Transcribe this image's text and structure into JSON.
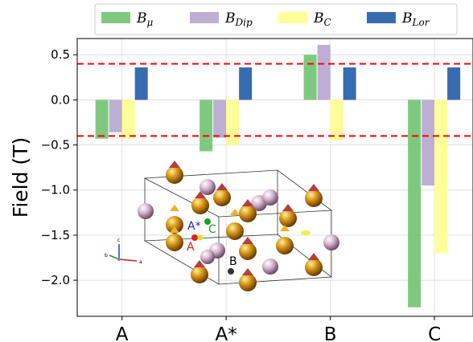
{
  "chart_data": {
    "type": "bar",
    "categories": [
      "A",
      "A*",
      "B",
      "C"
    ],
    "series": [
      {
        "name": "B",
        "sub": "μ",
        "color": "#7fc97f",
        "values": [
          -0.43,
          -0.57,
          0.5,
          -2.3
        ]
      },
      {
        "name": "B",
        "sub": "Dip",
        "color": "#beaed4",
        "values": [
          -0.36,
          -0.42,
          0.61,
          -0.95
        ]
      },
      {
        "name": "B",
        "sub": "C",
        "color": "#ffff99",
        "values": [
          -0.43,
          -0.5,
          -0.45,
          -1.7
        ]
      },
      {
        "name": "B",
        "sub": "Lor",
        "color": "#386cb0",
        "values": [
          0.36,
          0.36,
          0.36,
          0.36
        ]
      }
    ],
    "ylabel": "Field (T)",
    "ylim": [
      -2.4,
      0.68
    ],
    "yticks": [
      0.5,
      0.0,
      -0.5,
      -1.0,
      -1.5,
      -2.0
    ],
    "ytick_labels": [
      "0.5",
      "0.0",
      "−0.5",
      "−1.0",
      "−1.5",
      "−2.0"
    ],
    "reference_lines": [
      0.4,
      -0.4
    ],
    "reference_line_color": "#ff0000",
    "grid": true,
    "legend_position": "top"
  },
  "inset": {
    "site_labels": [
      {
        "text": "A*",
        "color": "#2020d0"
      },
      {
        "text": "C",
        "color": "#20a020"
      },
      {
        "text": "A",
        "color": "#e02020"
      },
      {
        "text": "B",
        "color": "#000000"
      }
    ],
    "axes_labels": [
      "c",
      "b",
      "a"
    ]
  }
}
